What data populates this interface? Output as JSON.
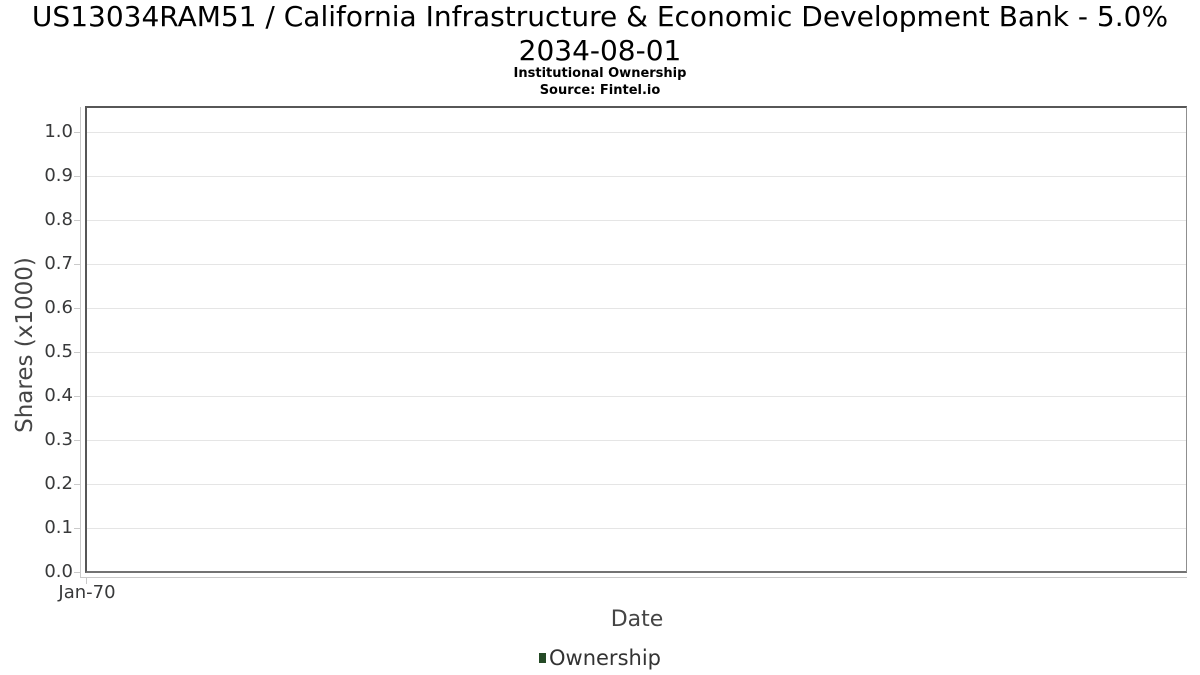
{
  "chart_data": {
    "type": "line",
    "title": "US13034RAM51 / California Infrastructure & Economic Development Bank - 5.0% 2034-08-01",
    "title_lines": [
      "US13034RAM51 / California Infrastructure & Economic Development Bank - 5.0%",
      "2034-08-01"
    ],
    "subtitle": "Institutional Ownership",
    "source": "Source: Fintel.io",
    "xlabel": "Date",
    "ylabel": "Shares (x1000)",
    "x_ticks": [
      "Jan-70"
    ],
    "y_ticks": [
      "0.0",
      "0.1",
      "0.2",
      "0.3",
      "0.4",
      "0.5",
      "0.6",
      "0.7",
      "0.8",
      "0.9",
      "1.0"
    ],
    "ylim": [
      0,
      1.057
    ],
    "grid": "horizontal-only",
    "legend_position": "bottom-center",
    "series": [
      {
        "name": "Ownership",
        "color": "#254a26",
        "data": []
      }
    ]
  },
  "colors": {
    "title_text": "#000000",
    "tick_label": "#38393a",
    "axis_title": "#454545",
    "legend_text": "#333333",
    "gridline": "#e5e5e5",
    "axis_line": "#cacaca",
    "plot_border_dark": "#575757",
    "plot_border_light": "#8f8f8f",
    "background": "#ffffff"
  }
}
